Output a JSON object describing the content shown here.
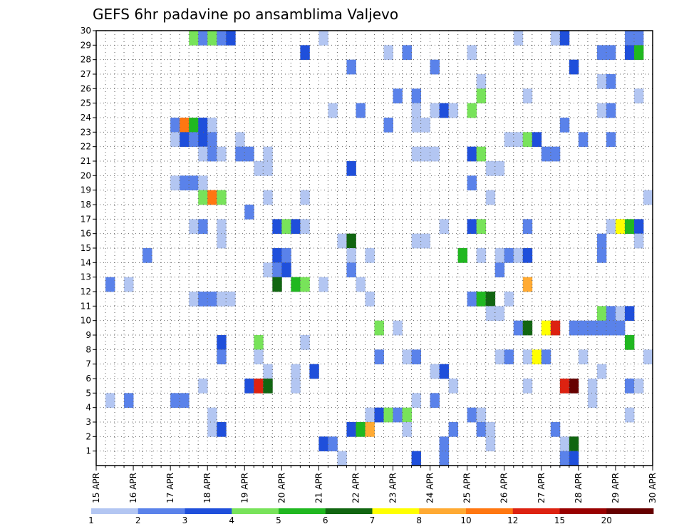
{
  "chart_data": {
    "type": "heatmap",
    "title": "GEFS 6hr padavine po ansamblima Valjevo",
    "xlabel": "",
    "ylabel": "",
    "x_ticks": [
      "15 APR",
      "16 APR",
      "17 APR",
      "18 APR",
      "19 APR",
      "20 APR",
      "21 APR",
      "22 APR",
      "23 APR",
      "24 APR",
      "25 APR",
      "26 APR",
      "27 APR",
      "28 APR",
      "29 APR",
      "30 APR"
    ],
    "x_range": [
      "15 APR",
      "30 APR"
    ],
    "y_ticks": [
      "1",
      "2",
      "3",
      "4",
      "5",
      "6",
      "7",
      "8",
      "9",
      "10",
      "11",
      "12",
      "13",
      "14",
      "15",
      "16",
      "17",
      "18",
      "19",
      "20",
      "21",
      "22",
      "23",
      "24",
      "25",
      "26",
      "27",
      "28",
      "29",
      "30"
    ],
    "grid": true,
    "colorbar": {
      "placement": "bottom",
      "labels": [
        "1",
        "2",
        "3",
        "4",
        "5",
        "6",
        "7",
        "8",
        "10",
        "12",
        "15",
        "20"
      ],
      "colors": [
        "#b3c6f2",
        "#5a82ea",
        "#1f4fdb",
        "#78e35a",
        "#20b820",
        "#116611",
        "#ffff00",
        "#ffaa33",
        "#ff7711",
        "#dd2211",
        "#990000",
        "#660000"
      ]
    },
    "cells": [
      {
        "member": 30,
        "step": 11,
        "cls": 3
      },
      {
        "member": 30,
        "step": 12,
        "cls": 1
      },
      {
        "member": 30,
        "step": 13,
        "cls": 3
      },
      {
        "member": 30,
        "step": 14,
        "cls": 1
      },
      {
        "member": 30,
        "step": 15,
        "cls": 2
      },
      {
        "member": 30,
        "step": 25,
        "cls": 0
      },
      {
        "member": 30,
        "step": 46,
        "cls": 0
      },
      {
        "member": 30,
        "step": 50,
        "cls": 0
      },
      {
        "member": 30,
        "step": 51,
        "cls": 2
      },
      {
        "member": 30,
        "step": 58,
        "cls": 1
      },
      {
        "member": 30,
        "step": 59,
        "cls": 1
      },
      {
        "member": 29,
        "step": 23,
        "cls": 2
      },
      {
        "member": 29,
        "step": 32,
        "cls": 0
      },
      {
        "member": 29,
        "step": 34,
        "cls": 1
      },
      {
        "member": 29,
        "step": 41,
        "cls": 0
      },
      {
        "member": 29,
        "step": 55,
        "cls": 1
      },
      {
        "member": 29,
        "step": 56,
        "cls": 1
      },
      {
        "member": 29,
        "step": 58,
        "cls": 2
      },
      {
        "member": 29,
        "step": 59,
        "cls": 4
      },
      {
        "member": 28,
        "step": 28,
        "cls": 1
      },
      {
        "member": 28,
        "step": 37,
        "cls": 1
      },
      {
        "member": 28,
        "step": 52,
        "cls": 2
      },
      {
        "member": 27,
        "step": 42,
        "cls": 0
      },
      {
        "member": 27,
        "step": 55,
        "cls": 0
      },
      {
        "member": 27,
        "step": 56,
        "cls": 1
      },
      {
        "member": 26,
        "step": 33,
        "cls": 1
      },
      {
        "member": 26,
        "step": 35,
        "cls": 1
      },
      {
        "member": 26,
        "step": 42,
        "cls": 3
      },
      {
        "member": 26,
        "step": 47,
        "cls": 0
      },
      {
        "member": 26,
        "step": 59,
        "cls": 0
      },
      {
        "member": 25,
        "step": 26,
        "cls": 0
      },
      {
        "member": 25,
        "step": 29,
        "cls": 1
      },
      {
        "member": 25,
        "step": 35,
        "cls": 0
      },
      {
        "member": 25,
        "step": 37,
        "cls": 0
      },
      {
        "member": 25,
        "step": 38,
        "cls": 2
      },
      {
        "member": 25,
        "step": 39,
        "cls": 0
      },
      {
        "member": 25,
        "step": 41,
        "cls": 3
      },
      {
        "member": 25,
        "step": 55,
        "cls": 0
      },
      {
        "member": 25,
        "step": 56,
        "cls": 1
      },
      {
        "member": 24,
        "step": 9,
        "cls": 1
      },
      {
        "member": 24,
        "step": 10,
        "cls": 8
      },
      {
        "member": 24,
        "step": 11,
        "cls": 4
      },
      {
        "member": 24,
        "step": 12,
        "cls": 2
      },
      {
        "member": 24,
        "step": 13,
        "cls": 0
      },
      {
        "member": 24,
        "step": 32,
        "cls": 1
      },
      {
        "member": 24,
        "step": 35,
        "cls": 0
      },
      {
        "member": 24,
        "step": 36,
        "cls": 0
      },
      {
        "member": 24,
        "step": 51,
        "cls": 1
      },
      {
        "member": 23,
        "step": 9,
        "cls": 0
      },
      {
        "member": 23,
        "step": 10,
        "cls": 2
      },
      {
        "member": 23,
        "step": 11,
        "cls": 1
      },
      {
        "member": 23,
        "step": 12,
        "cls": 2
      },
      {
        "member": 23,
        "step": 13,
        "cls": 1
      },
      {
        "member": 23,
        "step": 16,
        "cls": 0
      },
      {
        "member": 23,
        "step": 45,
        "cls": 0
      },
      {
        "member": 23,
        "step": 46,
        "cls": 0
      },
      {
        "member": 23,
        "step": 47,
        "cls": 3
      },
      {
        "member": 23,
        "step": 48,
        "cls": 2
      },
      {
        "member": 23,
        "step": 53,
        "cls": 1
      },
      {
        "member": 23,
        "step": 56,
        "cls": 1
      },
      {
        "member": 22,
        "step": 12,
        "cls": 0
      },
      {
        "member": 22,
        "step": 13,
        "cls": 1
      },
      {
        "member": 22,
        "step": 14,
        "cls": 0
      },
      {
        "member": 22,
        "step": 16,
        "cls": 1
      },
      {
        "member": 22,
        "step": 17,
        "cls": 1
      },
      {
        "member": 22,
        "step": 19,
        "cls": 0
      },
      {
        "member": 22,
        "step": 35,
        "cls": 0
      },
      {
        "member": 22,
        "step": 36,
        "cls": 0
      },
      {
        "member": 22,
        "step": 37,
        "cls": 0
      },
      {
        "member": 22,
        "step": 41,
        "cls": 2
      },
      {
        "member": 22,
        "step": 42,
        "cls": 3
      },
      {
        "member": 22,
        "step": 49,
        "cls": 1
      },
      {
        "member": 22,
        "step": 50,
        "cls": 1
      },
      {
        "member": 21,
        "step": 18,
        "cls": 0
      },
      {
        "member": 21,
        "step": 19,
        "cls": 0
      },
      {
        "member": 21,
        "step": 28,
        "cls": 2
      },
      {
        "member": 21,
        "step": 43,
        "cls": 0
      },
      {
        "member": 21,
        "step": 44,
        "cls": 0
      },
      {
        "member": 20,
        "step": 9,
        "cls": 0
      },
      {
        "member": 20,
        "step": 10,
        "cls": 1
      },
      {
        "member": 20,
        "step": 11,
        "cls": 1
      },
      {
        "member": 20,
        "step": 12,
        "cls": 0
      },
      {
        "member": 20,
        "step": 41,
        "cls": 1
      },
      {
        "member": 19,
        "step": 12,
        "cls": 3
      },
      {
        "member": 19,
        "step": 13,
        "cls": 8
      },
      {
        "member": 19,
        "step": 14,
        "cls": 3
      },
      {
        "member": 19,
        "step": 19,
        "cls": 0
      },
      {
        "member": 19,
        "step": 23,
        "cls": 0
      },
      {
        "member": 19,
        "step": 43,
        "cls": 0
      },
      {
        "member": 19,
        "step": 60,
        "cls": 0
      },
      {
        "member": 18,
        "step": 17,
        "cls": 1
      },
      {
        "member": 17,
        "step": 11,
        "cls": 0
      },
      {
        "member": 17,
        "step": 12,
        "cls": 1
      },
      {
        "member": 17,
        "step": 14,
        "cls": 0
      },
      {
        "member": 17,
        "step": 20,
        "cls": 2
      },
      {
        "member": 17,
        "step": 21,
        "cls": 3
      },
      {
        "member": 17,
        "step": 22,
        "cls": 2
      },
      {
        "member": 17,
        "step": 23,
        "cls": 0
      },
      {
        "member": 17,
        "step": 38,
        "cls": 0
      },
      {
        "member": 17,
        "step": 41,
        "cls": 2
      },
      {
        "member": 17,
        "step": 42,
        "cls": 3
      },
      {
        "member": 17,
        "step": 47,
        "cls": 1
      },
      {
        "member": 17,
        "step": 56,
        "cls": 0
      },
      {
        "member": 17,
        "step": 57,
        "cls": 6
      },
      {
        "member": 17,
        "step": 58,
        "cls": 4
      },
      {
        "member": 17,
        "step": 59,
        "cls": 2
      },
      {
        "member": 16,
        "step": 14,
        "cls": 0
      },
      {
        "member": 16,
        "step": 27,
        "cls": 0
      },
      {
        "member": 16,
        "step": 28,
        "cls": 5
      },
      {
        "member": 16,
        "step": 35,
        "cls": 0
      },
      {
        "member": 16,
        "step": 36,
        "cls": 0
      },
      {
        "member": 16,
        "step": 55,
        "cls": 1
      },
      {
        "member": 16,
        "step": 59,
        "cls": 0
      },
      {
        "member": 15,
        "step": 6,
        "cls": 1
      },
      {
        "member": 15,
        "step": 20,
        "cls": 2
      },
      {
        "member": 15,
        "step": 21,
        "cls": 1
      },
      {
        "member": 15,
        "step": 28,
        "cls": 0
      },
      {
        "member": 15,
        "step": 30,
        "cls": 0
      },
      {
        "member": 15,
        "step": 40,
        "cls": 4
      },
      {
        "member": 15,
        "step": 42,
        "cls": 0
      },
      {
        "member": 15,
        "step": 44,
        "cls": 0
      },
      {
        "member": 15,
        "step": 45,
        "cls": 1
      },
      {
        "member": 15,
        "step": 46,
        "cls": 0
      },
      {
        "member": 15,
        "step": 47,
        "cls": 2
      },
      {
        "member": 15,
        "step": 55,
        "cls": 1
      },
      {
        "member": 14,
        "step": 19,
        "cls": 0
      },
      {
        "member": 14,
        "step": 20,
        "cls": 1
      },
      {
        "member": 14,
        "step": 21,
        "cls": 2
      },
      {
        "member": 14,
        "step": 28,
        "cls": 1
      },
      {
        "member": 14,
        "step": 44,
        "cls": 1
      },
      {
        "member": 13,
        "step": 2,
        "cls": 1
      },
      {
        "member": 13,
        "step": 4,
        "cls": 0
      },
      {
        "member": 13,
        "step": 20,
        "cls": 5
      },
      {
        "member": 13,
        "step": 22,
        "cls": 4
      },
      {
        "member": 13,
        "step": 23,
        "cls": 3
      },
      {
        "member": 13,
        "step": 25,
        "cls": 0
      },
      {
        "member": 13,
        "step": 29,
        "cls": 0
      },
      {
        "member": 13,
        "step": 47,
        "cls": 7
      },
      {
        "member": 12,
        "step": 11,
        "cls": 0
      },
      {
        "member": 12,
        "step": 12,
        "cls": 1
      },
      {
        "member": 12,
        "step": 13,
        "cls": 1
      },
      {
        "member": 12,
        "step": 14,
        "cls": 0
      },
      {
        "member": 12,
        "step": 15,
        "cls": 0
      },
      {
        "member": 12,
        "step": 30,
        "cls": 0
      },
      {
        "member": 12,
        "step": 41,
        "cls": 1
      },
      {
        "member": 12,
        "step": 42,
        "cls": 4
      },
      {
        "member": 12,
        "step": 43,
        "cls": 5
      },
      {
        "member": 12,
        "step": 45,
        "cls": 0
      },
      {
        "member": 11,
        "step": 43,
        "cls": 0
      },
      {
        "member": 11,
        "step": 44,
        "cls": 0
      },
      {
        "member": 11,
        "step": 55,
        "cls": 3
      },
      {
        "member": 11,
        "step": 56,
        "cls": 1
      },
      {
        "member": 11,
        "step": 57,
        "cls": 0
      },
      {
        "member": 11,
        "step": 58,
        "cls": 2
      },
      {
        "member": 10,
        "step": 31,
        "cls": 3
      },
      {
        "member": 10,
        "step": 33,
        "cls": 0
      },
      {
        "member": 10,
        "step": 46,
        "cls": 1
      },
      {
        "member": 10,
        "step": 47,
        "cls": 5
      },
      {
        "member": 10,
        "step": 49,
        "cls": 6
      },
      {
        "member": 10,
        "step": 50,
        "cls": 9
      },
      {
        "member": 10,
        "step": 52,
        "cls": 1
      },
      {
        "member": 10,
        "step": 53,
        "cls": 1
      },
      {
        "member": 10,
        "step": 54,
        "cls": 1
      },
      {
        "member": 10,
        "step": 55,
        "cls": 1
      },
      {
        "member": 10,
        "step": 56,
        "cls": 1
      },
      {
        "member": 10,
        "step": 57,
        "cls": 1
      },
      {
        "member": 9,
        "step": 14,
        "cls": 2
      },
      {
        "member": 9,
        "step": 18,
        "cls": 3
      },
      {
        "member": 9,
        "step": 23,
        "cls": 0
      },
      {
        "member": 9,
        "step": 58,
        "cls": 4
      },
      {
        "member": 8,
        "step": 14,
        "cls": 1
      },
      {
        "member": 8,
        "step": 18,
        "cls": 0
      },
      {
        "member": 8,
        "step": 31,
        "cls": 1
      },
      {
        "member": 8,
        "step": 34,
        "cls": 0
      },
      {
        "member": 8,
        "step": 35,
        "cls": 1
      },
      {
        "member": 8,
        "step": 44,
        "cls": 0
      },
      {
        "member": 8,
        "step": 45,
        "cls": 1
      },
      {
        "member": 8,
        "step": 47,
        "cls": 0
      },
      {
        "member": 8,
        "step": 48,
        "cls": 6
      },
      {
        "member": 8,
        "step": 49,
        "cls": 1
      },
      {
        "member": 8,
        "step": 53,
        "cls": 0
      },
      {
        "member": 8,
        "step": 60,
        "cls": 0
      },
      {
        "member": 7,
        "step": 19,
        "cls": 0
      },
      {
        "member": 7,
        "step": 22,
        "cls": 0
      },
      {
        "member": 7,
        "step": 24,
        "cls": 2
      },
      {
        "member": 7,
        "step": 37,
        "cls": 0
      },
      {
        "member": 7,
        "step": 38,
        "cls": 2
      },
      {
        "member": 7,
        "step": 55,
        "cls": 0
      },
      {
        "member": 6,
        "step": 12,
        "cls": 0
      },
      {
        "member": 6,
        "step": 17,
        "cls": 2
      },
      {
        "member": 6,
        "step": 18,
        "cls": 9
      },
      {
        "member": 6,
        "step": 19,
        "cls": 5
      },
      {
        "member": 6,
        "step": 22,
        "cls": 0
      },
      {
        "member": 6,
        "step": 39,
        "cls": 0
      },
      {
        "member": 6,
        "step": 47,
        "cls": 0
      },
      {
        "member": 6,
        "step": 51,
        "cls": 9
      },
      {
        "member": 6,
        "step": 52,
        "cls": 11
      },
      {
        "member": 6,
        "step": 54,
        "cls": 0
      },
      {
        "member": 6,
        "step": 58,
        "cls": 1
      },
      {
        "member": 6,
        "step": 59,
        "cls": 0
      },
      {
        "member": 5,
        "step": 2,
        "cls": 0
      },
      {
        "member": 5,
        "step": 4,
        "cls": 1
      },
      {
        "member": 5,
        "step": 9,
        "cls": 1
      },
      {
        "member": 5,
        "step": 10,
        "cls": 1
      },
      {
        "member": 5,
        "step": 35,
        "cls": 0
      },
      {
        "member": 5,
        "step": 37,
        "cls": 1
      },
      {
        "member": 5,
        "step": 54,
        "cls": 0
      },
      {
        "member": 4,
        "step": 13,
        "cls": 0
      },
      {
        "member": 4,
        "step": 30,
        "cls": 0
      },
      {
        "member": 4,
        "step": 31,
        "cls": 2
      },
      {
        "member": 4,
        "step": 32,
        "cls": 3
      },
      {
        "member": 4,
        "step": 33,
        "cls": 1
      },
      {
        "member": 4,
        "step": 34,
        "cls": 3
      },
      {
        "member": 4,
        "step": 41,
        "cls": 1
      },
      {
        "member": 4,
        "step": 42,
        "cls": 0
      },
      {
        "member": 4,
        "step": 58,
        "cls": 0
      },
      {
        "member": 3,
        "step": 13,
        "cls": 0
      },
      {
        "member": 3,
        "step": 14,
        "cls": 2
      },
      {
        "member": 3,
        "step": 28,
        "cls": 2
      },
      {
        "member": 3,
        "step": 29,
        "cls": 4
      },
      {
        "member": 3,
        "step": 30,
        "cls": 7
      },
      {
        "member": 3,
        "step": 34,
        "cls": 0
      },
      {
        "member": 3,
        "step": 39,
        "cls": 1
      },
      {
        "member": 3,
        "step": 42,
        "cls": 1
      },
      {
        "member": 3,
        "step": 43,
        "cls": 0
      },
      {
        "member": 3,
        "step": 50,
        "cls": 1
      },
      {
        "member": 2,
        "step": 25,
        "cls": 2
      },
      {
        "member": 2,
        "step": 26,
        "cls": 1
      },
      {
        "member": 2,
        "step": 38,
        "cls": 1
      },
      {
        "member": 2,
        "step": 43,
        "cls": 0
      },
      {
        "member": 2,
        "step": 51,
        "cls": 0
      },
      {
        "member": 2,
        "step": 52,
        "cls": 5
      },
      {
        "member": 1,
        "step": 27,
        "cls": 0
      },
      {
        "member": 1,
        "step": 35,
        "cls": 2
      },
      {
        "member": 1,
        "step": 38,
        "cls": 1
      },
      {
        "member": 1,
        "step": 51,
        "cls": 1
      },
      {
        "member": 1,
        "step": 52,
        "cls": 2
      }
    ]
  }
}
